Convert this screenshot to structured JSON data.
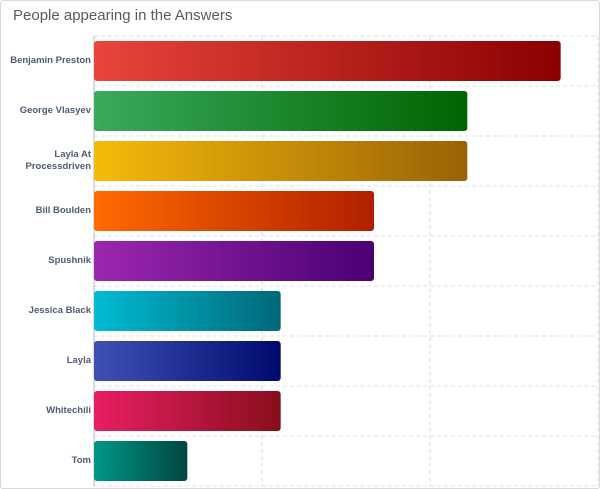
{
  "chart_data": {
    "type": "bar",
    "orientation": "horizontal",
    "title": "People appearing in the Answers",
    "categories": [
      "Benjamin Preston",
      "George Vlasyev",
      "Layla At Processdriven",
      "Bill Boulden",
      "Spushnik",
      "Jessica Black",
      "Layla",
      "Whitechili",
      "Tom"
    ],
    "values": [
      5,
      4,
      4,
      3,
      3,
      2,
      2,
      2,
      1
    ],
    "colors": [
      [
        "#e8453c",
        "#8b0000"
      ],
      [
        "#3aaa5c",
        "#006400"
      ],
      [
        "#f5bb0a",
        "#9a6206"
      ],
      [
        "#ff6a00",
        "#b01f00"
      ],
      [
        "#9c27b0",
        "#4a0072"
      ],
      [
        "#00bcd4",
        "#006878"
      ],
      [
        "#3f51b5",
        "#000a6e"
      ],
      [
        "#e91e63",
        "#880e1b"
      ],
      [
        "#009688",
        "#00473f"
      ]
    ],
    "xlim": [
      0,
      5.4
    ],
    "grid": true
  }
}
